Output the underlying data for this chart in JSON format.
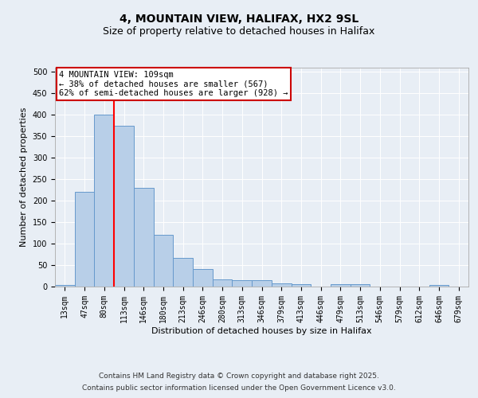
{
  "title": "4, MOUNTAIN VIEW, HALIFAX, HX2 9SL",
  "subtitle": "Size of property relative to detached houses in Halifax",
  "xlabel": "Distribution of detached houses by size in Halifax",
  "ylabel": "Number of detached properties",
  "bar_labels": [
    "13sqm",
    "47sqm",
    "80sqm",
    "113sqm",
    "146sqm",
    "180sqm",
    "213sqm",
    "246sqm",
    "280sqm",
    "313sqm",
    "346sqm",
    "379sqm",
    "413sqm",
    "446sqm",
    "479sqm",
    "513sqm",
    "546sqm",
    "579sqm",
    "612sqm",
    "646sqm",
    "679sqm"
  ],
  "bar_values": [
    3,
    220,
    400,
    375,
    230,
    120,
    67,
    40,
    17,
    15,
    15,
    7,
    5,
    0,
    5,
    5,
    0,
    0,
    0,
    3,
    0
  ],
  "bar_color": "#b8cfe8",
  "bar_edge_color": "#6699cc",
  "background_color": "#e8eef5",
  "plot_bg_color": "#e8eef5",
  "red_line_x": 2.5,
  "annotation_text": "4 MOUNTAIN VIEW: 109sqm\n← 38% of detached houses are smaller (567)\n62% of semi-detached houses are larger (928) →",
  "annotation_box_facecolor": "#ffffff",
  "annotation_box_edgecolor": "#cc0000",
  "ylim": [
    0,
    510
  ],
  "yticks": [
    0,
    50,
    100,
    150,
    200,
    250,
    300,
    350,
    400,
    450,
    500
  ],
  "footer_line1": "Contains HM Land Registry data © Crown copyright and database right 2025.",
  "footer_line2": "Contains public sector information licensed under the Open Government Licence v3.0.",
  "title_fontsize": 10,
  "subtitle_fontsize": 9,
  "axis_label_fontsize": 8,
  "tick_fontsize": 7,
  "annotation_fontsize": 7.5,
  "footer_fontsize": 6.5
}
